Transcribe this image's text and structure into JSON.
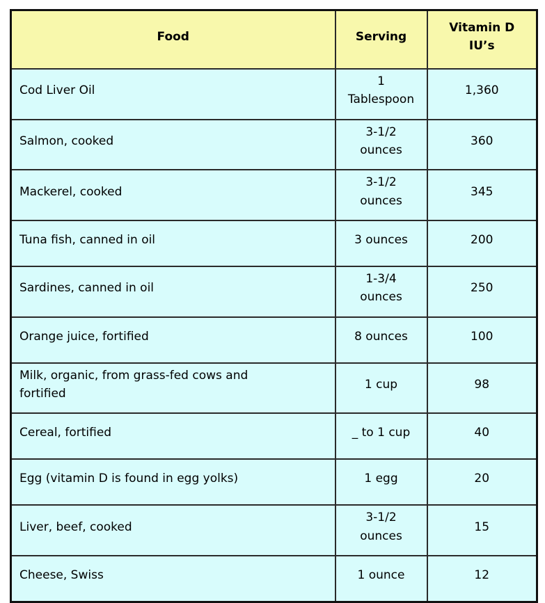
{
  "colors": {
    "header_bg": "#f8f8ac",
    "row_bg": "#d8fcfc",
    "border": "#2a2a2a",
    "text": "#000000"
  },
  "table": {
    "columns": [
      {
        "label": "Food"
      },
      {
        "label": "Serving"
      },
      {
        "label": "Vitamin D\nIU’s"
      }
    ],
    "rows": [
      {
        "food": "Cod Liver Oil",
        "serving": "1\nTablespoon",
        "vitamin_d": "1,360"
      },
      {
        "food": "Salmon, cooked",
        "serving": "3-1/2\nounces",
        "vitamin_d": "360"
      },
      {
        "food": "Mackerel, cooked",
        "serving": "3-1/2\nounces",
        "vitamin_d": "345"
      },
      {
        "food": "Tuna fish, canned in oil",
        "serving": "3 ounces",
        "vitamin_d": "200"
      },
      {
        "food": "Sardines, canned in oil",
        "serving": "1-3/4\nounces",
        "vitamin_d": "250"
      },
      {
        "food": "Orange juice, fortified",
        "serving": "8 ounces",
        "vitamin_d": "100"
      },
      {
        "food": "Milk, organic, from grass-fed cows and\nfortified",
        "serving": "1 cup",
        "vitamin_d": "98"
      },
      {
        "food": "Cereal, fortified",
        "serving": "_ to 1 cup",
        "vitamin_d": "40"
      },
      {
        "food": "Egg (vitamin D is found in egg yolks)",
        "serving": "1 egg",
        "vitamin_d": "20"
      },
      {
        "food": "Liver, beef, cooked",
        "serving": "3-1/2\nounces",
        "vitamin_d": "15"
      },
      {
        "food": "Cheese, Swiss",
        "serving": "1 ounce",
        "vitamin_d": "12"
      }
    ]
  },
  "chart_data": {
    "type": "table",
    "title": "",
    "columns": [
      "Food",
      "Serving",
      "Vitamin D IU’s"
    ],
    "rows": [
      [
        "Cod Liver Oil",
        "1 Tablespoon",
        1360
      ],
      [
        "Salmon, cooked",
        "3-1/2 ounces",
        360
      ],
      [
        "Mackerel, cooked",
        "3-1/2 ounces",
        345
      ],
      [
        "Tuna fish, canned in oil",
        "3 ounces",
        200
      ],
      [
        "Sardines, canned in oil",
        "1-3/4 ounces",
        250
      ],
      [
        "Orange juice, fortified",
        "8 ounces",
        100
      ],
      [
        "Milk, organic, from grass-fed cows and fortified",
        "1 cup",
        98
      ],
      [
        "Cereal, fortified",
        "_ to 1 cup",
        40
      ],
      [
        "Egg (vitamin D is found in egg yolks)",
        "1 egg",
        20
      ],
      [
        "Liver, beef, cooked",
        "3-1/2 ounces",
        15
      ],
      [
        "Cheese, Swiss",
        "1 ounce",
        12
      ]
    ]
  }
}
